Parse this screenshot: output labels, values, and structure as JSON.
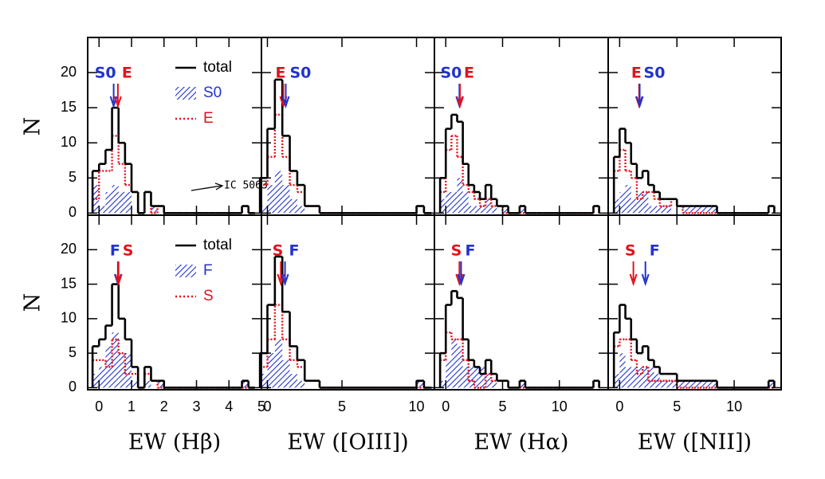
{
  "chart_data": [
    {
      "type": "histogram",
      "ylabel": "N",
      "legend": true,
      "annotation": "IC 5063",
      "bins": [
        -0.2,
        0,
        0.2,
        0.4,
        0.6,
        0.8,
        1.0,
        1.2,
        1.4,
        1.6,
        1.8,
        2.0,
        2.2,
        2.4,
        2.6,
        2.8,
        3.0,
        3.2,
        3.4,
        3.6,
        3.8,
        4.0,
        4.2,
        4.4,
        4.6,
        4.8
      ],
      "series": [
        {
          "name": "S0",
          "color": "#2233cc",
          "style": "hatch",
          "values": [
            4,
            1,
            3,
            4,
            3,
            3,
            0,
            0,
            0,
            1,
            0,
            0,
            0,
            0,
            0,
            0,
            0,
            0,
            0,
            0,
            0,
            0,
            0,
            0,
            0
          ]
        },
        {
          "name": "E",
          "color": "#e3121c",
          "style": "dotted",
          "values": [
            2,
            6,
            6,
            11,
            7,
            4,
            3,
            0,
            3,
            0,
            1,
            0,
            0,
            0,
            0,
            0,
            0,
            0,
            0,
            0,
            0,
            0,
            0,
            1,
            0
          ]
        },
        {
          "name": "total",
          "color": "#000000",
          "style": "solid",
          "values": [
            6,
            7,
            9,
            15,
            10,
            7,
            3,
            0,
            3,
            1,
            1,
            0,
            0,
            0,
            0,
            0,
            0,
            0,
            0,
            0,
            0,
            0,
            0,
            1,
            0
          ]
        }
      ],
      "arrows": [
        {
          "label": "S0",
          "value": 0.45,
          "color": "#2233cc"
        },
        {
          "label": "E",
          "value": 0.58,
          "color": "#e3121c"
        }
      ],
      "xlim": [
        -0.35,
        5
      ],
      "ylim": [
        -0.3,
        25
      ],
      "xticks": [
        0,
        1,
        2,
        3,
        4,
        5
      ],
      "yticks": [
        0,
        5,
        10,
        15,
        20
      ]
    },
    {
      "type": "histogram",
      "bins": [
        -0.5,
        0,
        0.5,
        1,
        1.5,
        2,
        2.5,
        3,
        3.5,
        4,
        4.5,
        5,
        5.5,
        6,
        6.5,
        7,
        7.5,
        8,
        8.5,
        9,
        9.5,
        10,
        10.5,
        11
      ],
      "series": [
        {
          "color": "#2233cc",
          "style": "hatch",
          "values": [
            1,
            4,
            6,
            4,
            2,
            1,
            0,
            0,
            0,
            0,
            0,
            0,
            0,
            0,
            0,
            0,
            0,
            0,
            0,
            0,
            0,
            0,
            0
          ]
        },
        {
          "color": "#e3121c",
          "style": "dotted",
          "values": [
            4,
            8,
            14,
            8,
            4,
            3,
            1,
            1,
            0,
            0,
            0,
            0,
            0,
            0,
            0,
            0,
            0,
            0,
            0,
            0,
            0,
            1,
            0
          ]
        },
        {
          "color": "#000000",
          "style": "solid",
          "values": [
            5,
            12,
            19,
            11,
            6,
            4,
            1,
            1,
            0,
            0,
            0,
            0,
            0,
            0,
            0,
            0,
            0,
            0,
            0,
            0,
            0,
            1,
            0
          ]
        }
      ],
      "arrows": [
        {
          "label": "E",
          "value": 1.07,
          "color": "#e3121c"
        },
        {
          "label": "S0",
          "value": 1.23,
          "color": "#2233cc"
        }
      ],
      "xlim": [
        -0.4,
        11.2
      ],
      "ylim": [
        -0.3,
        25
      ],
      "xticks": [
        0,
        5,
        10
      ],
      "yticks": [
        0,
        5,
        10,
        15,
        20
      ]
    },
    {
      "type": "histogram",
      "bins": [
        -0.5,
        0,
        0.5,
        1,
        1.5,
        2,
        2.5,
        3,
        3.5,
        4,
        4.5,
        5,
        5.5,
        6,
        6.5,
        7,
        7.5,
        8,
        8.5,
        9,
        9.5,
        10,
        10.5,
        11,
        11.5,
        12,
        12.5,
        13,
        13.5
      ],
      "series": [
        {
          "color": "#2233cc",
          "style": "hatch",
          "values": [
            2,
            3,
            3,
            5,
            3,
            1,
            1,
            1,
            2,
            1,
            0,
            1,
            0,
            0,
            1,
            0,
            0,
            0,
            0,
            0,
            0,
            0,
            0,
            0,
            0,
            0,
            0,
            0
          ]
        },
        {
          "color": "#e3121c",
          "style": "dotted",
          "values": [
            3,
            9,
            11,
            8,
            4,
            3,
            2,
            1,
            2,
            1,
            1,
            0,
            0,
            0,
            0,
            0,
            0,
            0,
            0,
            0,
            0,
            0,
            0,
            0,
            0,
            0,
            0,
            1
          ]
        },
        {
          "color": "#000000",
          "style": "solid",
          "values": [
            5,
            12,
            14,
            13,
            7,
            4,
            3,
            2,
            4,
            2,
            1,
            1,
            0,
            0,
            1,
            0,
            0,
            0,
            0,
            0,
            0,
            0,
            0,
            0,
            0,
            0,
            0,
            1
          ]
        }
      ],
      "arrows": [
        {
          "label": "S0",
          "value": 1.2,
          "color": "#2233cc"
        },
        {
          "label": "E",
          "value": 1.25,
          "color": "#e3121c"
        }
      ],
      "xlim": [
        -1,
        14.3
      ],
      "ylim": [
        -0.3,
        25
      ],
      "xticks": [
        0,
        5,
        10
      ],
      "yticks": [
        0,
        5,
        10,
        15,
        20
      ]
    },
    {
      "type": "histogram",
      "bins": [
        -0.5,
        0,
        0.5,
        1,
        1.5,
        2,
        2.5,
        3,
        3.5,
        4,
        4.5,
        5,
        5.5,
        6,
        6.5,
        7,
        7.5,
        8,
        8.5,
        9,
        9.5,
        10,
        10.5,
        11,
        11.5,
        12,
        12.5,
        13,
        13.5
      ],
      "series": [
        {
          "color": "#2233cc",
          "style": "hatch",
          "values": [
            2,
            3,
            4,
            2,
            3,
            3,
            1,
            1,
            1,
            1,
            0,
            0,
            1,
            1,
            1,
            1,
            1,
            1,
            0,
            0,
            0,
            0,
            0,
            0,
            0,
            0,
            0,
            0
          ]
        },
        {
          "color": "#e3121c",
          "style": "dotted",
          "values": [
            6,
            9,
            6,
            5,
            2,
            3,
            3,
            2,
            1,
            1,
            2,
            1,
            0,
            0,
            0,
            0,
            0,
            0,
            0,
            0,
            0,
            0,
            0,
            0,
            0,
            0,
            0,
            1
          ]
        },
        {
          "color": "#000000",
          "style": "solid",
          "values": [
            8,
            12,
            10,
            7,
            5,
            6,
            4,
            3,
            2,
            2,
            2,
            1,
            1,
            1,
            1,
            1,
            1,
            1,
            0,
            0,
            0,
            0,
            0,
            0,
            0,
            0,
            0,
            1
          ]
        }
      ],
      "arrows": [
        {
          "label": "E",
          "value": 1.7,
          "color": "#e3121c"
        },
        {
          "label": "S0",
          "value": 1.75,
          "color": "#2233cc"
        }
      ],
      "xlim": [
        -1,
        14.1
      ],
      "ylim": [
        -0.3,
        25
      ],
      "xticks": [
        0,
        5,
        10
      ],
      "yticks": [
        0,
        5,
        10,
        15,
        20
      ]
    },
    {
      "type": "histogram",
      "ylabel": "N",
      "xlabel": "EW (Hβ)",
      "legend": true,
      "bins": [
        -0.2,
        0,
        0.2,
        0.4,
        0.6,
        0.8,
        1.0,
        1.2,
        1.4,
        1.6,
        1.8,
        2.0,
        2.2,
        2.4,
        2.6,
        2.8,
        3.0,
        3.2,
        3.4,
        3.6,
        3.8,
        4.0,
        4.2,
        4.4,
        4.6,
        4.8
      ],
      "series": [
        {
          "name": "F",
          "color": "#2233cc",
          "style": "hatch",
          "values": [
            2,
            3,
            6,
            8,
            5,
            5,
            1,
            0,
            1,
            0,
            1,
            0,
            0,
            0,
            0,
            0,
            0,
            0,
            0,
            0,
            0,
            0,
            0,
            1,
            0
          ]
        },
        {
          "name": "S",
          "color": "#e3121c",
          "style": "dotted",
          "values": [
            4,
            4,
            3,
            7,
            5,
            2,
            2,
            0,
            2,
            1,
            0,
            0,
            0,
            0,
            0,
            0,
            0,
            0,
            0,
            0,
            0,
            0,
            0,
            0,
            0
          ]
        },
        {
          "name": "total",
          "color": "#000000",
          "style": "solid",
          "values": [
            6,
            7,
            9,
            15,
            10,
            7,
            3,
            0,
            3,
            1,
            1,
            0,
            0,
            0,
            0,
            0,
            0,
            0,
            0,
            0,
            0,
            0,
            0,
            1,
            0
          ]
        }
      ],
      "arrows": [
        {
          "label": "F",
          "value": 0.58,
          "color": "#2233cc"
        },
        {
          "label": "S",
          "value": 0.6,
          "color": "#e3121c"
        }
      ],
      "xlim": [
        -0.35,
        5
      ],
      "ylim": [
        -0.3,
        25
      ],
      "xticks": [
        0,
        1,
        2,
        3,
        4,
        5
      ],
      "yticks": [
        0,
        5,
        10,
        15,
        20
      ]
    },
    {
      "type": "histogram",
      "xlabel": "EW ([OIII])",
      "bins": [
        -0.5,
        0,
        0.5,
        1,
        1.5,
        2,
        2.5,
        3,
        3.5,
        4,
        4.5,
        5,
        5.5,
        6,
        6.5,
        7,
        7.5,
        8,
        8.5,
        9,
        9.5,
        10,
        10.5,
        11
      ],
      "series": [
        {
          "color": "#2233cc",
          "style": "hatch",
          "values": [
            2,
            5,
            7,
            4,
            2,
            1,
            0,
            0,
            0,
            0,
            0,
            0,
            0,
            0,
            0,
            0,
            0,
            0,
            0,
            0,
            0,
            1,
            0
          ]
        },
        {
          "color": "#e3121c",
          "style": "dotted",
          "values": [
            3,
            7,
            12,
            7,
            4,
            3,
            1,
            1,
            0,
            0,
            0,
            0,
            0,
            0,
            0,
            0,
            0,
            0,
            0,
            0,
            0,
            0,
            0
          ]
        },
        {
          "color": "#000000",
          "style": "solid",
          "values": [
            5,
            12,
            19,
            11,
            6,
            4,
            1,
            1,
            0,
            0,
            0,
            0,
            0,
            0,
            0,
            0,
            0,
            0,
            0,
            0,
            0,
            1,
            0
          ]
        }
      ],
      "arrows": [
        {
          "label": "S",
          "value": 0.9,
          "color": "#e3121c"
        },
        {
          "label": "F",
          "value": 1.18,
          "color": "#2233cc"
        }
      ],
      "xlim": [
        -0.4,
        11.2
      ],
      "ylim": [
        -0.3,
        25
      ],
      "xticks": [
        0,
        5,
        10
      ],
      "yticks": [
        0,
        5,
        10,
        15,
        20
      ]
    },
    {
      "type": "histogram",
      "xlabel": "EW (Hα)",
      "bins": [
        -0.5,
        0,
        0.5,
        1,
        1.5,
        2,
        2.5,
        3,
        3.5,
        4,
        4.5,
        5,
        5.5,
        6,
        6.5,
        7,
        7.5,
        8,
        8.5,
        9,
        9.5,
        10,
        10.5,
        11,
        11.5,
        12,
        12.5,
        13,
        13.5
      ],
      "series": [
        {
          "color": "#2233cc",
          "style": "hatch",
          "values": [
            1,
            4,
            7,
            6,
            3,
            3,
            3,
            3,
            2,
            1,
            0,
            0,
            0,
            0,
            1,
            0,
            0,
            0,
            0,
            0,
            0,
            0,
            0,
            0,
            0,
            0,
            0,
            0
          ]
        },
        {
          "color": "#e3121c",
          "style": "dotted",
          "values": [
            4,
            8,
            7,
            7,
            4,
            1,
            0,
            0,
            2,
            1,
            1,
            1,
            0,
            0,
            0,
            0,
            0,
            0,
            0,
            0,
            0,
            0,
            0,
            0,
            0,
            0,
            0,
            1
          ]
        },
        {
          "color": "#000000",
          "style": "solid",
          "values": [
            5,
            12,
            14,
            13,
            7,
            4,
            3,
            2,
            4,
            2,
            1,
            1,
            0,
            0,
            1,
            0,
            0,
            0,
            0,
            0,
            0,
            0,
            0,
            0,
            0,
            0,
            0,
            1
          ]
        }
      ],
      "arrows": [
        {
          "label": "S",
          "value": 1.2,
          "color": "#e3121c"
        },
        {
          "label": "F",
          "value": 1.35,
          "color": "#2233cc"
        }
      ],
      "xlim": [
        -1,
        14.3
      ],
      "ylim": [
        -0.3,
        25
      ],
      "xticks": [
        0,
        5,
        10
      ],
      "yticks": [
        0,
        5,
        10,
        15,
        20
      ]
    },
    {
      "type": "histogram",
      "xlabel": "EW ([NII])",
      "bins": [
        -0.5,
        0,
        0.5,
        1,
        1.5,
        2,
        2.5,
        3,
        3.5,
        4,
        4.5,
        5,
        5.5,
        6,
        6.5,
        7,
        7.5,
        8,
        8.5,
        9,
        9.5,
        10,
        10.5,
        11,
        11.5,
        12,
        12.5,
        13,
        13.5
      ],
      "series": [
        {
          "color": "#2233cc",
          "style": "hatch",
          "values": [
            2,
            5,
            3,
            3,
            3,
            3,
            3,
            2,
            1,
            1,
            1,
            1,
            1,
            1,
            1,
            1,
            1,
            1,
            0,
            0,
            0,
            0,
            0,
            0,
            0,
            0,
            0,
            1
          ]
        },
        {
          "color": "#e3121c",
          "style": "dotted",
          "values": [
            6,
            7,
            7,
            4,
            2,
            3,
            1,
            1,
            1,
            1,
            1,
            0,
            0,
            0,
            0,
            0,
            0,
            0,
            0,
            0,
            0,
            0,
            0,
            0,
            0,
            0,
            0,
            0
          ]
        },
        {
          "color": "#000000",
          "style": "solid",
          "values": [
            8,
            12,
            10,
            7,
            5,
            6,
            4,
            3,
            2,
            2,
            2,
            1,
            1,
            1,
            1,
            1,
            1,
            1,
            0,
            0,
            0,
            0,
            0,
            0,
            0,
            0,
            0,
            1
          ]
        }
      ],
      "arrows": [
        {
          "label": "S",
          "value": 1.2,
          "color": "#e3121c"
        },
        {
          "label": "F",
          "value": 2.25,
          "color": "#2233cc"
        }
      ],
      "xlim": [
        -1,
        14.1
      ],
      "ylim": [
        -0.3,
        25
      ],
      "xticks": [
        0,
        5,
        10
      ],
      "yticks": [
        0,
        5,
        10,
        15,
        20
      ]
    }
  ]
}
